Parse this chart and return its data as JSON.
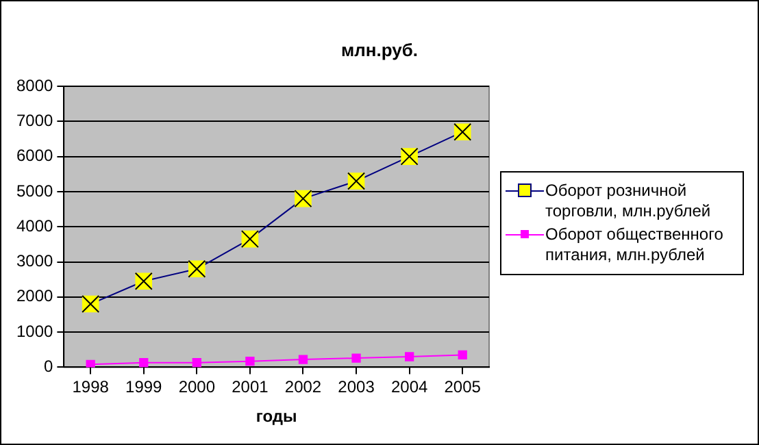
{
  "chart_data": {
    "type": "line",
    "title": "млн.руб.",
    "xlabel": "годы",
    "categories": [
      "1998",
      "1999",
      "2000",
      "2001",
      "2002",
      "2003",
      "2004",
      "2005"
    ],
    "series": [
      {
        "name": "Оборот розничной торговли, млн.рублей",
        "color": "#000080",
        "marker": "square",
        "values": [
          1800,
          2450,
          2800,
          3650,
          4800,
          5300,
          6000,
          6700
        ]
      },
      {
        "name": "Оборот общественного питания, млн.рублей",
        "color": "#ff00ff",
        "marker": "square",
        "values": [
          80,
          130,
          130,
          170,
          220,
          260,
          300,
          350
        ]
      }
    ],
    "ylim": [
      0,
      8000
    ],
    "yticks": [
      0,
      1000,
      2000,
      3000,
      4000,
      5000,
      6000,
      7000,
      8000
    ],
    "grid": "y",
    "legend": "right"
  }
}
